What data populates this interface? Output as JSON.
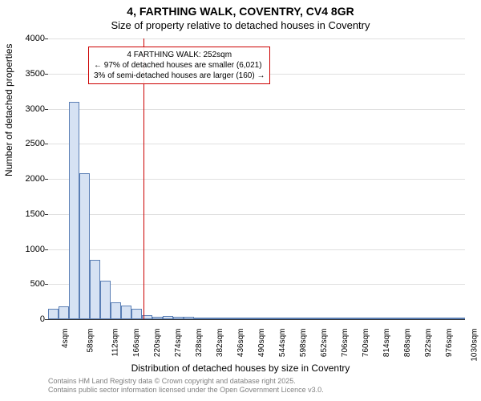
{
  "title_line1": "4, FARTHING WALK, COVENTRY, CV4 8GR",
  "title_line2": "Size of property relative to detached houses in Coventry",
  "ylabel": "Number of detached properties",
  "xlabel": "Distribution of detached houses by size in Coventry",
  "chart": {
    "type": "histogram",
    "ylim": [
      0,
      4000
    ],
    "yticks": [
      0,
      500,
      1000,
      1500,
      2000,
      2500,
      3000,
      3500,
      4000
    ],
    "xticks": [
      "4sqm",
      "58sqm",
      "112sqm",
      "166sqm",
      "220sqm",
      "274sqm",
      "328sqm",
      "382sqm",
      "436sqm",
      "490sqm",
      "544sqm",
      "598sqm",
      "652sqm",
      "706sqm",
      "760sqm",
      "814sqm",
      "868sqm",
      "922sqm",
      "976sqm",
      "1030sqm",
      "1084sqm"
    ],
    "xtick_step_sqm": 54,
    "x_min_sqm": 4,
    "x_max_sqm": 1084,
    "bin_width_sqm": 27,
    "values": [
      150,
      180,
      3100,
      2080,
      850,
      550,
      240,
      200,
      150,
      60,
      40,
      45,
      35,
      30,
      22,
      20,
      22,
      15,
      10,
      10,
      8,
      8,
      6,
      6,
      5,
      5,
      4,
      4,
      4,
      3,
      3,
      3,
      3,
      2,
      2,
      2,
      2,
      2,
      2,
      2
    ],
    "bar_fill": "#d6e2f3",
    "bar_stroke": "#5b7fb5",
    "grid_color": "#e0e0e0",
    "background": "#ffffff",
    "marker_sqm": 252,
    "marker_color": "#cc0000"
  },
  "annotation": {
    "line1": "4 FARTHING WALK: 252sqm",
    "line2": "← 97% of detached houses are smaller (6,021)",
    "line3": "3% of semi-detached houses are larger (160) →",
    "border_color": "#cc0000"
  },
  "attribution": {
    "line1": "Contains HM Land Registry data © Crown copyright and database right 2025.",
    "line2": "Contains public sector information licensed under the Open Government Licence v3.0."
  }
}
